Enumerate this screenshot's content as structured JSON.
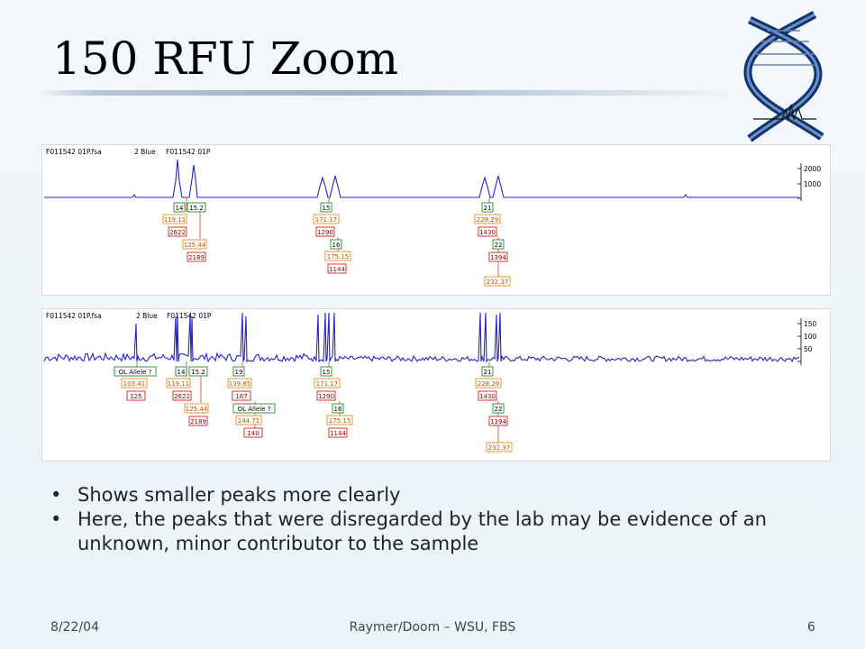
{
  "slide": {
    "title": "150 RFU Zoom",
    "bullets": [
      "Shows smaller peaks more clearly",
      "Here, the peaks that were disregarded by the lab may be evidence of an unknown, minor contributor to the sample"
    ],
    "footer": {
      "date": "8/22/04",
      "center": "Raymer/Doom – WSU, FBS",
      "page": "6"
    }
  },
  "panels": [
    {
      "file_label": "F011542 01P.fsa",
      "dye_label": "2 Blue",
      "sample_label": "F011542 01P",
      "y_ticks": [
        "2000",
        "1000"
      ],
      "labels": [
        {
          "text": "14",
          "type": "allele"
        },
        {
          "text": "15.2",
          "type": "allele"
        },
        {
          "text": "119.11",
          "type": "size"
        },
        {
          "text": "2622",
          "type": "height"
        },
        {
          "text": "125.44",
          "type": "size"
        },
        {
          "text": "2189",
          "type": "height"
        },
        {
          "text": "15",
          "type": "allele"
        },
        {
          "text": "171.17",
          "type": "size"
        },
        {
          "text": "1290",
          "type": "height"
        },
        {
          "text": "16",
          "type": "allele"
        },
        {
          "text": "175.15",
          "type": "size"
        },
        {
          "text": "1144",
          "type": "height"
        },
        {
          "text": "21",
          "type": "allele"
        },
        {
          "text": "228.29",
          "type": "size"
        },
        {
          "text": "1430",
          "type": "height"
        },
        {
          "text": "22",
          "type": "allele"
        },
        {
          "text": "1394",
          "type": "height"
        },
        {
          "text": "232.37",
          "type": "size"
        }
      ]
    },
    {
      "file_label": "F011542 01P.fsa",
      "dye_label": "2 Blue",
      "sample_label": "F011542 01P",
      "y_ticks": [
        "150",
        "100",
        "50"
      ],
      "labels": [
        {
          "text": "OL Allele ?",
          "type": "allele"
        },
        {
          "text": "103.41",
          "type": "size"
        },
        {
          "text": "125",
          "type": "height"
        },
        {
          "text": "14",
          "type": "allele"
        },
        {
          "text": "15.2",
          "type": "allele"
        },
        {
          "text": "119.11",
          "type": "size"
        },
        {
          "text": "2622",
          "type": "height"
        },
        {
          "text": "125.44",
          "type": "size"
        },
        {
          "text": "2189",
          "type": "height"
        },
        {
          "text": "19",
          "type": "allele"
        },
        {
          "text": "139.85",
          "type": "size"
        },
        {
          "text": "167",
          "type": "height"
        },
        {
          "text": "OL Allele ?",
          "type": "allele"
        },
        {
          "text": "144.71",
          "type": "size"
        },
        {
          "text": "140",
          "type": "height"
        },
        {
          "text": "15",
          "type": "allele"
        },
        {
          "text": "171.17",
          "type": "size"
        },
        {
          "text": "1290",
          "type": "height"
        },
        {
          "text": "16",
          "type": "allele"
        },
        {
          "text": "175.15",
          "type": "size"
        },
        {
          "text": "1144",
          "type": "height"
        },
        {
          "text": "21",
          "type": "allele"
        },
        {
          "text": "228.29",
          "type": "size"
        },
        {
          "text": "1430",
          "type": "height"
        },
        {
          "text": "22",
          "type": "allele"
        },
        {
          "text": "1394",
          "type": "height"
        },
        {
          "text": "232.37",
          "type": "size"
        }
      ]
    }
  ],
  "colors": {
    "trace": "#2424c8",
    "allele_border": "#1e8a2e",
    "size_border": "#f08a1c",
    "height_border": "#d42020",
    "connector": "#e23b3b"
  }
}
